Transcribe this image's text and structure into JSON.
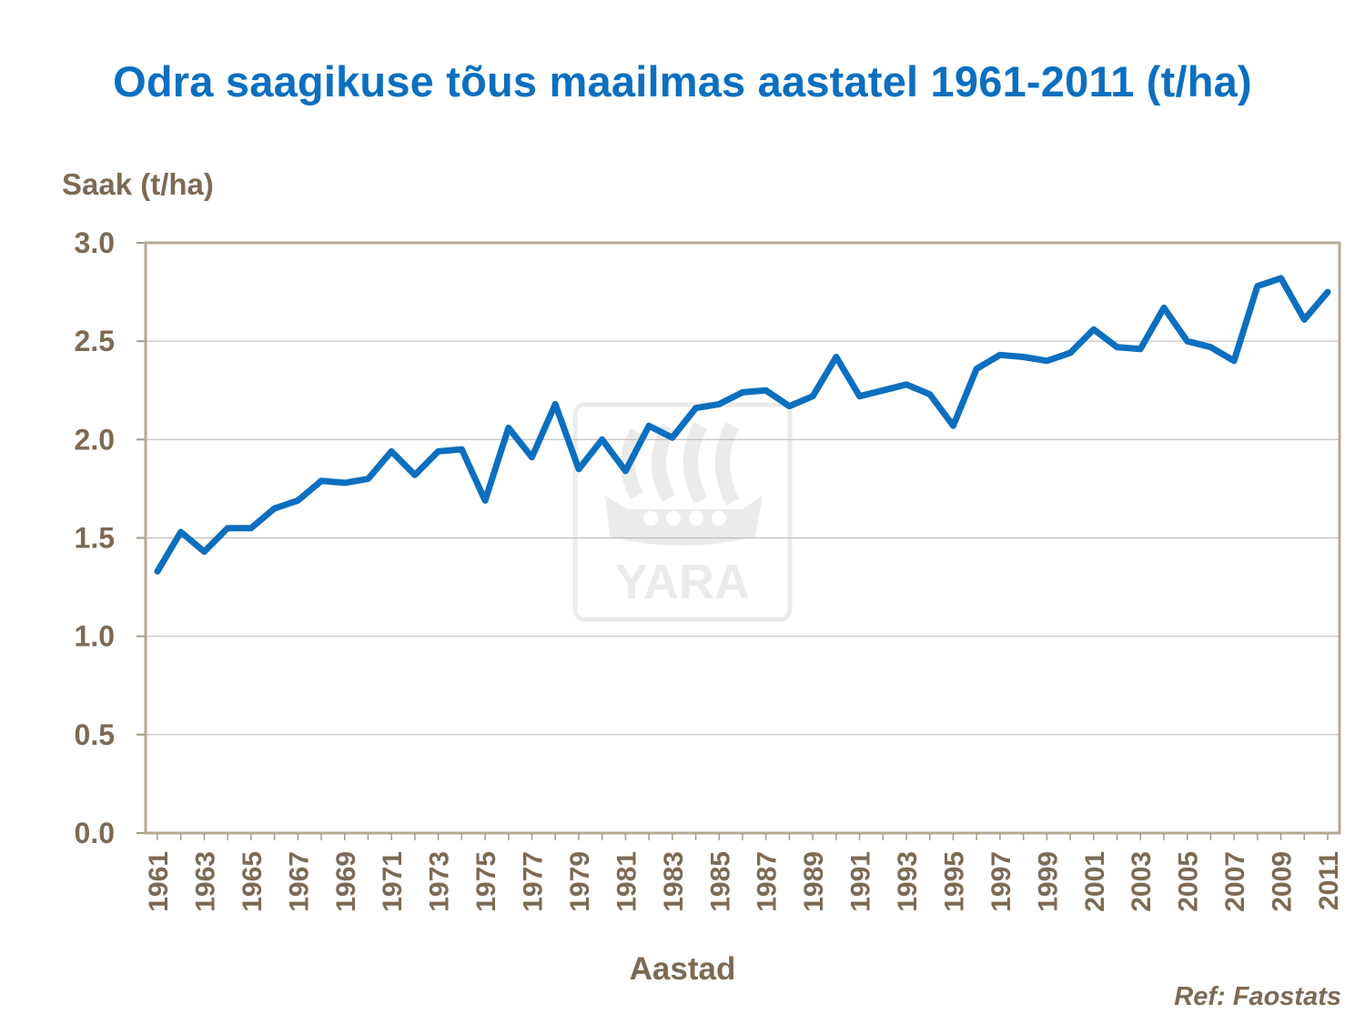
{
  "chart_data": {
    "type": "line",
    "title": "Odra saagikuse tõus maailmas aastatel 1961-2011 (t/ha)",
    "ylabel": "Saak (t/ha)",
    "xlabel": "Aastad",
    "ylim": [
      0,
      3
    ],
    "yticks": [
      "0.0",
      "0.5",
      "1.0",
      "1.5",
      "2.0",
      "2.5",
      "3.0"
    ],
    "xtick_labels": [
      "1961",
      "1963",
      "1965",
      "1967",
      "1969",
      "1971",
      "1973",
      "1975",
      "1977",
      "1979",
      "1981",
      "1983",
      "1985",
      "1987",
      "1989",
      "1991",
      "1993",
      "1995",
      "1997",
      "1999",
      "2001",
      "2003",
      "2005",
      "2007",
      "2009",
      "2011"
    ],
    "grid": true,
    "color": "#0b6fbf",
    "x": [
      1961,
      1962,
      1963,
      1964,
      1965,
      1966,
      1967,
      1968,
      1969,
      1970,
      1971,
      1972,
      1973,
      1974,
      1975,
      1976,
      1977,
      1978,
      1979,
      1980,
      1981,
      1982,
      1983,
      1984,
      1985,
      1986,
      1987,
      1988,
      1989,
      1990,
      1991,
      1992,
      1993,
      1994,
      1995,
      1996,
      1997,
      1998,
      1999,
      2000,
      2001,
      2002,
      2003,
      2004,
      2005,
      2006,
      2007,
      2008,
      2009,
      2010,
      2011
    ],
    "series": [
      {
        "values": [
          1.33,
          1.53,
          1.43,
          1.55,
          1.55,
          1.65,
          1.69,
          1.79,
          1.78,
          1.8,
          1.94,
          1.82,
          1.94,
          1.95,
          1.69,
          2.06,
          1.91,
          2.18,
          1.85,
          2.0,
          1.84,
          2.07,
          2.01,
          2.16,
          2.18,
          2.24,
          2.25,
          2.17,
          2.22,
          2.42,
          2.22,
          2.25,
          2.28,
          2.23,
          2.07,
          2.36,
          2.43,
          2.42,
          2.4,
          2.44,
          2.56,
          2.47,
          2.46,
          2.67,
          2.5,
          2.47,
          2.4,
          2.78,
          2.82,
          2.61,
          2.75
        ]
      }
    ]
  },
  "watermark": {
    "brand": "YARA"
  },
  "source_note": "Ref: Faostats"
}
